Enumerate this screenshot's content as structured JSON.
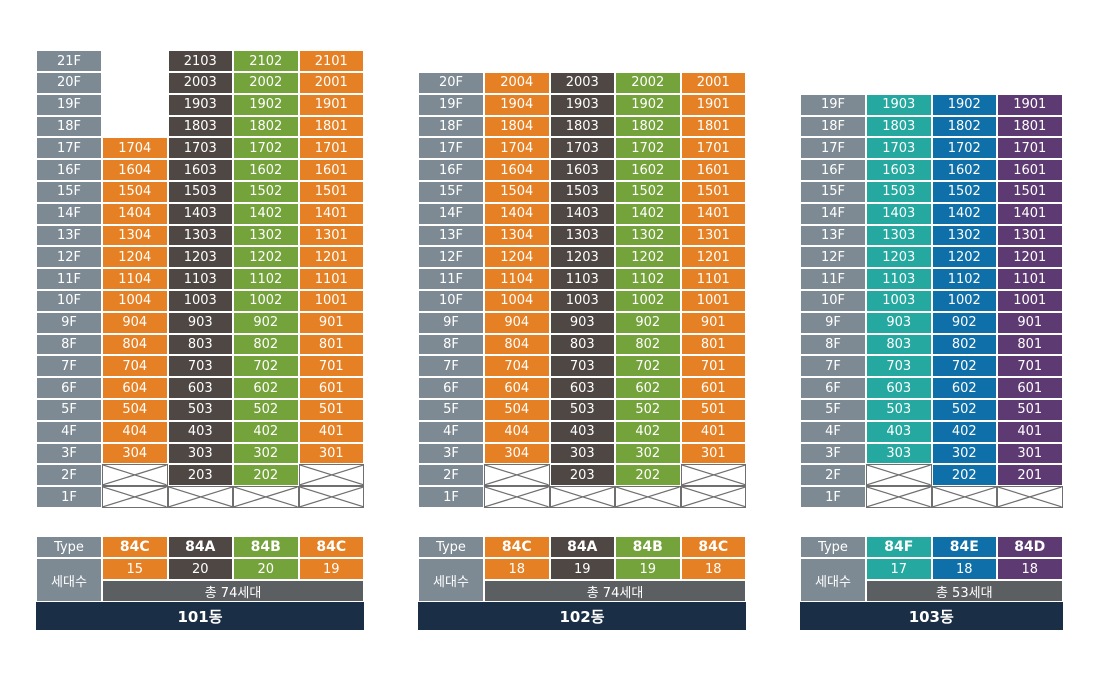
{
  "colors": {
    "floor_label": "#7d8a93",
    "84C": "#e58124",
    "84A": "#4f4744",
    "84B": "#74a23b",
    "84F": "#25a8a0",
    "84E": "#0f6fa8",
    "84D": "#5e3a72",
    "total_bar": "#5c5f61",
    "name_bar": "#1a2e45"
  },
  "labels": {
    "type": "Type",
    "households": "세대수"
  },
  "buildings": [
    {
      "name": "101동",
      "total": "총 74세대",
      "floors": [
        "21F",
        "20F",
        "19F",
        "18F",
        "17F",
        "16F",
        "15F",
        "14F",
        "13F",
        "12F",
        "11F",
        "10F",
        "9F",
        "8F",
        "7F",
        "6F",
        "5F",
        "4F",
        "3F",
        "2F",
        "1F"
      ],
      "columns": [
        {
          "type": "84C",
          "count": "15",
          "units": [
            "",
            "",
            "",
            "",
            "1704",
            "1604",
            "1504",
            "1404",
            "1304",
            "1204",
            "1104",
            "1004",
            "904",
            "804",
            "704",
            "604",
            "504",
            "404",
            "304",
            "x",
            "x"
          ]
        },
        {
          "type": "84A",
          "count": "20",
          "units": [
            "2103",
            "2003",
            "1903",
            "1803",
            "1703",
            "1603",
            "1503",
            "1403",
            "1303",
            "1203",
            "1103",
            "1003",
            "903",
            "803",
            "703",
            "603",
            "503",
            "403",
            "303",
            "203",
            "x"
          ]
        },
        {
          "type": "84B",
          "count": "20",
          "units": [
            "2102",
            "2002",
            "1902",
            "1802",
            "1702",
            "1602",
            "1502",
            "1402",
            "1302",
            "1202",
            "1102",
            "1002",
            "902",
            "802",
            "702",
            "602",
            "502",
            "402",
            "302",
            "202",
            "x"
          ]
        },
        {
          "type": "84C",
          "count": "19",
          "units": [
            "2101",
            "2001",
            "1901",
            "1801",
            "1701",
            "1601",
            "1501",
            "1401",
            "1301",
            "1201",
            "1101",
            "1001",
            "901",
            "801",
            "701",
            "601",
            "501",
            "401",
            "301",
            "x",
            "x"
          ]
        }
      ]
    },
    {
      "name": "102동",
      "total": "총 74세대",
      "floors": [
        "20F",
        "19F",
        "18F",
        "17F",
        "16F",
        "15F",
        "14F",
        "13F",
        "12F",
        "11F",
        "10F",
        "9F",
        "8F",
        "7F",
        "6F",
        "5F",
        "4F",
        "3F",
        "2F",
        "1F"
      ],
      "columns": [
        {
          "type": "84C",
          "count": "18",
          "units": [
            "2004",
            "1904",
            "1804",
            "1704",
            "1604",
            "1504",
            "1404",
            "1304",
            "1204",
            "1104",
            "1004",
            "904",
            "804",
            "704",
            "604",
            "504",
            "404",
            "304",
            "x",
            "x"
          ]
        },
        {
          "type": "84A",
          "count": "19",
          "units": [
            "2003",
            "1903",
            "1803",
            "1703",
            "1603",
            "1503",
            "1403",
            "1303",
            "1203",
            "1103",
            "1003",
            "903",
            "803",
            "703",
            "603",
            "503",
            "403",
            "303",
            "203",
            "x"
          ]
        },
        {
          "type": "84B",
          "count": "19",
          "units": [
            "2002",
            "1902",
            "1802",
            "1702",
            "1602",
            "1502",
            "1402",
            "1302",
            "1202",
            "1102",
            "1002",
            "902",
            "802",
            "702",
            "602",
            "502",
            "402",
            "302",
            "202",
            "x"
          ]
        },
        {
          "type": "84C",
          "count": "18",
          "units": [
            "2001",
            "1901",
            "1801",
            "1701",
            "1601",
            "1501",
            "1401",
            "1301",
            "1201",
            "1101",
            "1001",
            "901",
            "801",
            "701",
            "601",
            "501",
            "401",
            "301",
            "x",
            "x"
          ]
        }
      ]
    },
    {
      "name": "103동",
      "total": "총 53세대",
      "floors": [
        "19F",
        "18F",
        "17F",
        "16F",
        "15F",
        "14F",
        "13F",
        "12F",
        "11F",
        "10F",
        "9F",
        "8F",
        "7F",
        "6F",
        "5F",
        "4F",
        "3F",
        "2F",
        "1F"
      ],
      "columns": [
        {
          "type": "84F",
          "count": "17",
          "units": [
            "1903",
            "1803",
            "1703",
            "1603",
            "1503",
            "1403",
            "1303",
            "1203",
            "1103",
            "1003",
            "903",
            "803",
            "703",
            "603",
            "503",
            "403",
            "303",
            "x",
            "x"
          ]
        },
        {
          "type": "84E",
          "count": "18",
          "units": [
            "1902",
            "1802",
            "1702",
            "1602",
            "1502",
            "1402",
            "1302",
            "1202",
            "1102",
            "1002",
            "902",
            "802",
            "702",
            "602",
            "502",
            "402",
            "302",
            "202",
            "x"
          ]
        },
        {
          "type": "84D",
          "count": "18",
          "units": [
            "1901",
            "1801",
            "1701",
            "1601",
            "1501",
            "1401",
            "1301",
            "1201",
            "1101",
            "1001",
            "901",
            "801",
            "701",
            "601",
            "501",
            "401",
            "301",
            "201",
            "x"
          ]
        }
      ]
    }
  ]
}
